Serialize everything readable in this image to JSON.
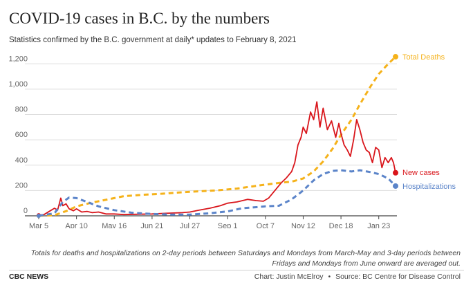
{
  "header": {
    "title": "COVID-19 cases in B.C. by the numbers",
    "subtitle": "Statistics confirmed by the B.C. government at daily* updates to February 8, 2021"
  },
  "footer": {
    "note": "Totals for deaths and hospitalizations on 2-day periods between Saturdays and Mondays from March-May and 3-day periods between Fridays and Mondays from June onward are averaged out.",
    "brand": "CBC NEWS",
    "chart_credit": "Chart: Justin McElroy",
    "separator": "•",
    "source": "Source: BC Centre for Disease Control"
  },
  "chart_data": {
    "type": "line",
    "title": "COVID-19 cases in B.C. by the numbers",
    "subtitle": "Statistics confirmed by the B.C. government at daily* updates to February 8, 2021",
    "x_tick_labels": [
      "Mar 5",
      "Apr 10",
      "May 16",
      "Jun 21",
      "Jul 27",
      "Sep 1",
      "Oct 7",
      "Nov 12",
      "Dec 18",
      "Jan 23"
    ],
    "x_tick_dates": [
      "2020-03-05",
      "2020-04-10",
      "2020-05-16",
      "2020-06-21",
      "2020-07-27",
      "2020-09-01",
      "2020-10-07",
      "2020-11-12",
      "2020-12-18",
      "2021-01-23"
    ],
    "x_range": [
      "2020-03-05",
      "2021-02-08"
    ],
    "y_ticks": [
      0,
      200,
      400,
      600,
      800,
      1000,
      1200
    ],
    "y_tick_labels": [
      "0",
      "200",
      "400",
      "600",
      "800",
      "1,000",
      "1,200"
    ],
    "ylim": [
      0,
      1300
    ],
    "grid": true,
    "series": [
      {
        "name": "Total Deaths",
        "color": "#f5b21a",
        "style": "dashed",
        "end_marker": true,
        "points": [
          [
            "2020-03-05",
            0
          ],
          [
            "2020-03-20",
            5
          ],
          [
            "2020-04-01",
            40
          ],
          [
            "2020-04-10",
            75
          ],
          [
            "2020-04-25",
            105
          ],
          [
            "2020-05-10",
            130
          ],
          [
            "2020-05-25",
            155
          ],
          [
            "2020-06-10",
            165
          ],
          [
            "2020-07-01",
            175
          ],
          [
            "2020-07-27",
            190
          ],
          [
            "2020-08-20",
            200
          ],
          [
            "2020-09-10",
            215
          ],
          [
            "2020-10-01",
            240
          ],
          [
            "2020-10-20",
            260
          ],
          [
            "2020-11-01",
            270
          ],
          [
            "2020-11-12",
            295
          ],
          [
            "2020-11-22",
            350
          ],
          [
            "2020-12-01",
            430
          ],
          [
            "2020-12-10",
            530
          ],
          [
            "2020-12-18",
            640
          ],
          [
            "2020-12-28",
            760
          ],
          [
            "2021-01-05",
            880
          ],
          [
            "2021-01-15",
            1020
          ],
          [
            "2021-01-23",
            1120
          ],
          [
            "2021-02-01",
            1200
          ],
          [
            "2021-02-08",
            1256
          ]
        ]
      },
      {
        "name": "New cases",
        "color": "#d9151b",
        "style": "solid",
        "end_marker": true,
        "points": [
          [
            "2020-03-05",
            5
          ],
          [
            "2020-03-10",
            10
          ],
          [
            "2020-03-16",
            40
          ],
          [
            "2020-03-20",
            60
          ],
          [
            "2020-03-23",
            45
          ],
          [
            "2020-03-26",
            140
          ],
          [
            "2020-03-28",
            80
          ],
          [
            "2020-03-31",
            95
          ],
          [
            "2020-04-03",
            55
          ],
          [
            "2020-04-07",
            40
          ],
          [
            "2020-04-10",
            55
          ],
          [
            "2020-04-15",
            30
          ],
          [
            "2020-04-20",
            35
          ],
          [
            "2020-04-25",
            25
          ],
          [
            "2020-05-01",
            30
          ],
          [
            "2020-05-08",
            15
          ],
          [
            "2020-05-16",
            15
          ],
          [
            "2020-05-25",
            10
          ],
          [
            "2020-06-05",
            12
          ],
          [
            "2020-06-21",
            15
          ],
          [
            "2020-07-05",
            20
          ],
          [
            "2020-07-20",
            25
          ],
          [
            "2020-07-27",
            30
          ],
          [
            "2020-08-05",
            45
          ],
          [
            "2020-08-15",
            60
          ],
          [
            "2020-08-25",
            80
          ],
          [
            "2020-09-01",
            100
          ],
          [
            "2020-09-10",
            110
          ],
          [
            "2020-09-20",
            130
          ],
          [
            "2020-09-28",
            120
          ],
          [
            "2020-10-05",
            115
          ],
          [
            "2020-10-10",
            140
          ],
          [
            "2020-10-16",
            200
          ],
          [
            "2020-10-22",
            260
          ],
          [
            "2020-10-27",
            300
          ],
          [
            "2020-11-01",
            350
          ],
          [
            "2020-11-04",
            420
          ],
          [
            "2020-11-07",
            560
          ],
          [
            "2020-11-10",
            620
          ],
          [
            "2020-11-12",
            700
          ],
          [
            "2020-11-15",
            650
          ],
          [
            "2020-11-19",
            820
          ],
          [
            "2020-11-22",
            760
          ],
          [
            "2020-11-25",
            900
          ],
          [
            "2020-11-28",
            700
          ],
          [
            "2020-12-01",
            850
          ],
          [
            "2020-12-05",
            680
          ],
          [
            "2020-12-09",
            750
          ],
          [
            "2020-12-13",
            620
          ],
          [
            "2020-12-16",
            730
          ],
          [
            "2020-12-18",
            650
          ],
          [
            "2020-12-21",
            560
          ],
          [
            "2020-12-24",
            520
          ],
          [
            "2020-12-27",
            470
          ],
          [
            "2020-12-30",
            600
          ],
          [
            "2021-01-02",
            760
          ],
          [
            "2021-01-05",
            680
          ],
          [
            "2021-01-08",
            580
          ],
          [
            "2021-01-11",
            520
          ],
          [
            "2021-01-14",
            500
          ],
          [
            "2021-01-17",
            420
          ],
          [
            "2021-01-20",
            540
          ],
          [
            "2021-01-23",
            520
          ],
          [
            "2021-01-26",
            380
          ],
          [
            "2021-01-29",
            460
          ],
          [
            "2021-02-01",
            420
          ],
          [
            "2021-02-04",
            460
          ],
          [
            "2021-02-06",
            420
          ],
          [
            "2021-02-08",
            340
          ]
        ]
      },
      {
        "name": "Hospitalizations",
        "color": "#5b84c9",
        "style": "dashed",
        "end_marker": true,
        "points": [
          [
            "2020-03-05",
            0
          ],
          [
            "2020-03-20",
            20
          ],
          [
            "2020-03-28",
            110
          ],
          [
            "2020-04-03",
            145
          ],
          [
            "2020-04-10",
            140
          ],
          [
            "2020-04-20",
            110
          ],
          [
            "2020-05-01",
            75
          ],
          [
            "2020-05-16",
            45
          ],
          [
            "2020-06-01",
            25
          ],
          [
            "2020-06-21",
            15
          ],
          [
            "2020-07-10",
            10
          ],
          [
            "2020-07-27",
            10
          ],
          [
            "2020-08-15",
            20
          ],
          [
            "2020-09-01",
            35
          ],
          [
            "2020-09-15",
            60
          ],
          [
            "2020-10-01",
            70
          ],
          [
            "2020-10-07",
            75
          ],
          [
            "2020-10-20",
            80
          ],
          [
            "2020-11-01",
            130
          ],
          [
            "2020-11-12",
            200
          ],
          [
            "2020-11-22",
            280
          ],
          [
            "2020-12-01",
            330
          ],
          [
            "2020-12-10",
            355
          ],
          [
            "2020-12-18",
            360
          ],
          [
            "2020-12-28",
            350
          ],
          [
            "2021-01-05",
            360
          ],
          [
            "2021-01-15",
            345
          ],
          [
            "2021-01-23",
            330
          ],
          [
            "2021-02-01",
            295
          ],
          [
            "2021-02-08",
            235
          ]
        ]
      }
    ],
    "end_labels": [
      {
        "series": "Total Deaths",
        "text": "Total Deaths"
      },
      {
        "series": "New cases",
        "text": "New cases"
      },
      {
        "series": "Hospitalizations",
        "text": "Hospitalizations"
      }
    ]
  }
}
